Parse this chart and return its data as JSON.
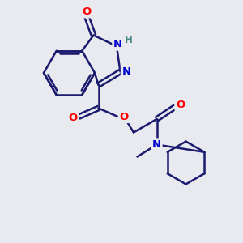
{
  "bg_color": "#e8eaf0",
  "bond_color": "#1a1a6e",
  "bond_width": 1.8,
  "atom_colors": {
    "O": "#ff0000",
    "N": "#0000cc",
    "H": "#4a8888",
    "C": "#1a1a6e"
  },
  "font_size_atom": 9.5,
  "fig_size": [
    3.0,
    3.0
  ],
  "dpi": 100,
  "xlim": [
    0,
    10
  ],
  "ylim": [
    0,
    10
  ]
}
